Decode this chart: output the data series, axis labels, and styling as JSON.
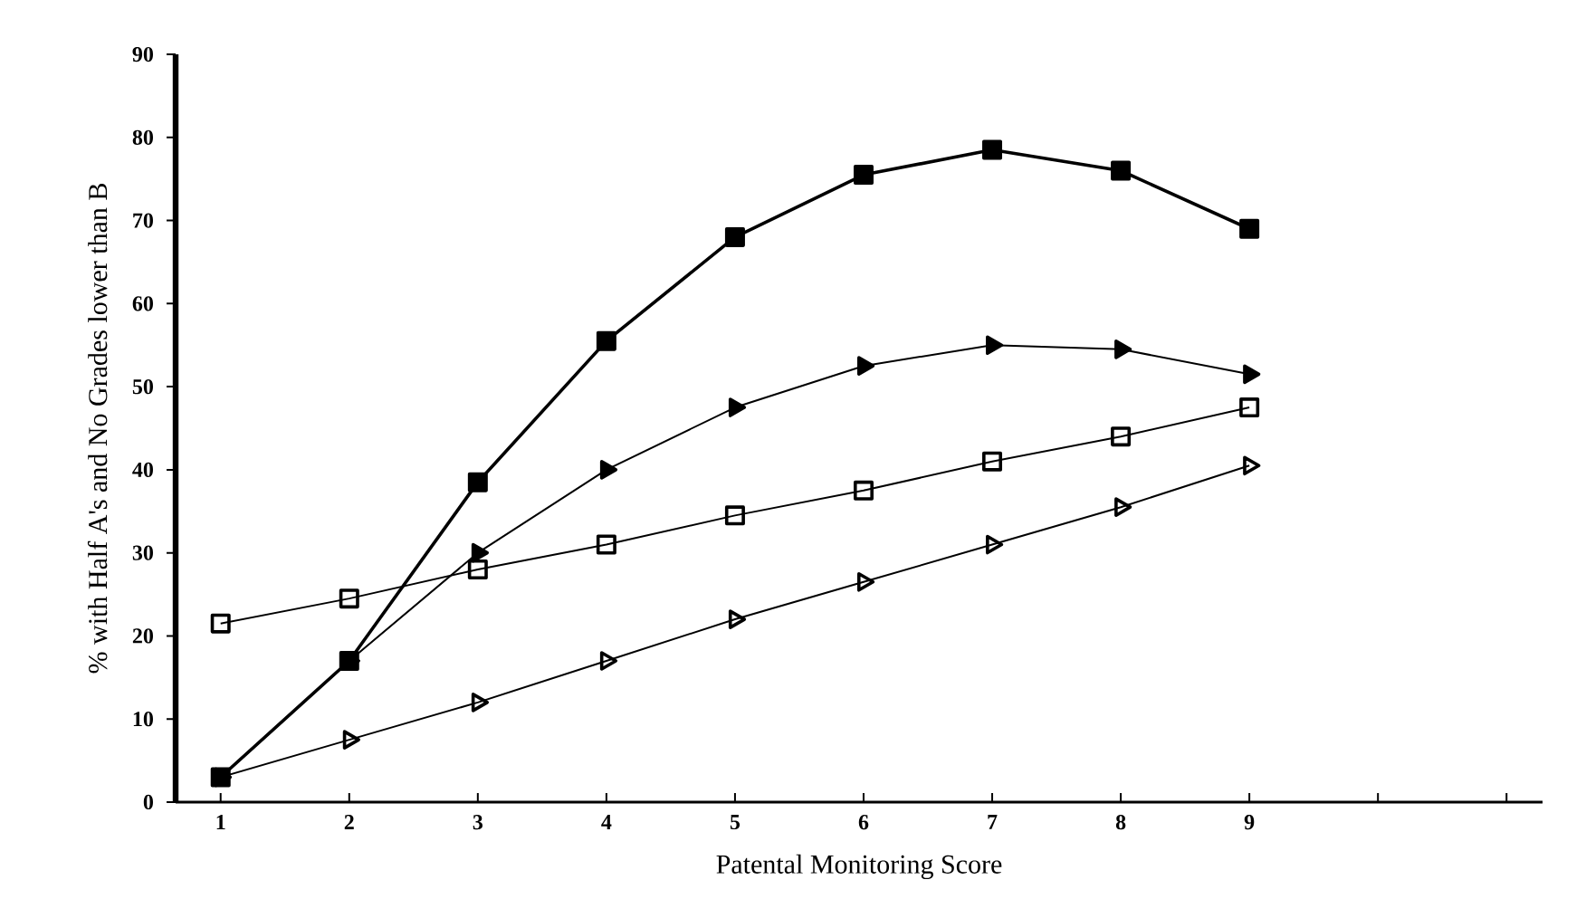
{
  "chart_data": {
    "type": "line",
    "xlabel": "Patental Monitoring Score",
    "ylabel": "% with Half A's and No Grades lower than B",
    "x": [
      1,
      2,
      3,
      4,
      5,
      6,
      7,
      8,
      9
    ],
    "xlim": [
      0.65,
      11.28
    ],
    "xticks": [
      1,
      2,
      3,
      4,
      5,
      6,
      7,
      8,
      9,
      {
        "value": 10,
        "label": null
      },
      {
        "value": 11,
        "label": null
      }
    ],
    "ylim": [
      0,
      90
    ],
    "yticks": [
      0,
      10,
      20,
      30,
      40,
      50,
      60,
      70,
      80,
      90
    ],
    "grid": false,
    "line_style": "solid",
    "series": [
      {
        "color": "#000000",
        "marker": "square",
        "values": [
          3,
          17,
          38.5,
          55.5,
          68,
          75.5,
          78.5,
          76,
          69
        ]
      },
      {
        "color": "#000000",
        "marker": "triangle",
        "values": [
          3,
          17,
          30,
          40,
          47.5,
          52.5,
          55,
          54.5,
          51.5
        ]
      },
      {
        "color": "#000000",
        "marker": "square",
        "values": [
          21.5,
          24.5,
          28,
          31,
          34.5,
          37.5,
          41,
          44,
          47.5
        ]
      },
      {
        "color": "#000000",
        "marker": "triangle",
        "values": [
          3,
          7.5,
          12,
          17,
          22,
          26.5,
          31,
          35.5,
          40.5
        ]
      }
    ]
  }
}
